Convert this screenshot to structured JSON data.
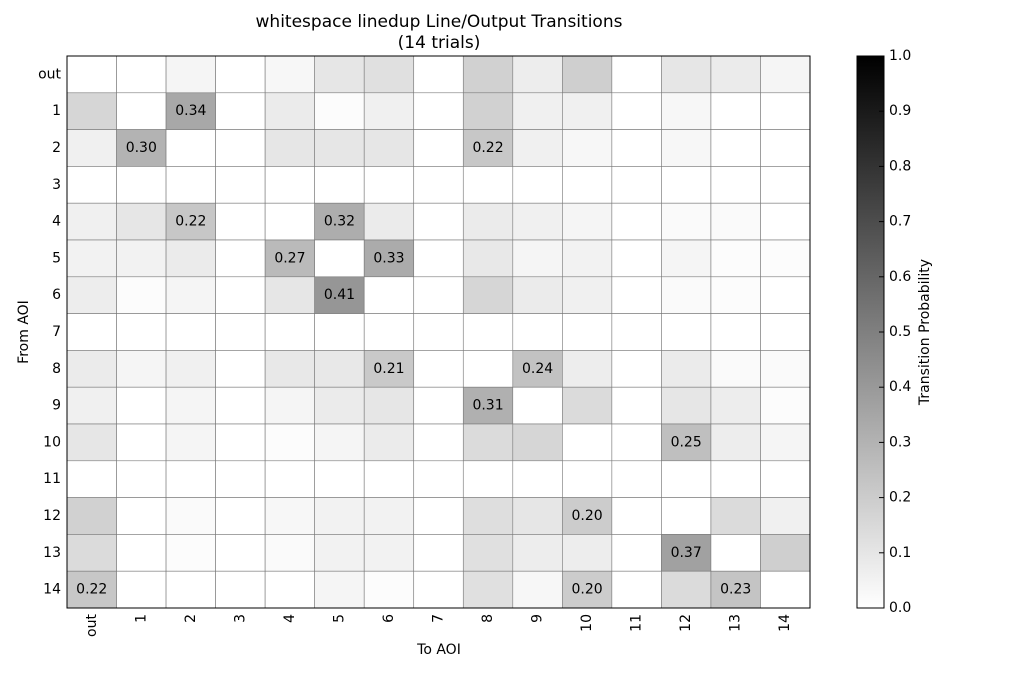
{
  "chart_data": {
    "type": "heatmap",
    "title": "whitespace linedup Line/Output Transitions",
    "subtitle": "(14 trials)",
    "x_label": "To AOI",
    "y_label": "From AOI",
    "colorbar_label": "Transition Probability",
    "x_categories": [
      "out",
      "1",
      "2",
      "3",
      "4",
      "5",
      "6",
      "7",
      "8",
      "9",
      "10",
      "11",
      "12",
      "13",
      "14"
    ],
    "y_categories": [
      "out",
      "1",
      "2",
      "3",
      "4",
      "5",
      "6",
      "7",
      "8",
      "9",
      "10",
      "11",
      "12",
      "13",
      "14"
    ],
    "values": [
      [
        0,
        0,
        0.04,
        0,
        0.03,
        0.1,
        0.12,
        0,
        0.18,
        0.07,
        0.19,
        0,
        0.1,
        0.08,
        0.04
      ],
      [
        0.16,
        0,
        0.34,
        0,
        0.08,
        0.01,
        0.06,
        0,
        0.18,
        0.06,
        0.06,
        0,
        0.03,
        0,
        0
      ],
      [
        0.06,
        0.3,
        0,
        0,
        0.1,
        0.1,
        0.1,
        0,
        0.22,
        0.06,
        0.03,
        0,
        0.03,
        0,
        0
      ],
      [
        0,
        0,
        0,
        0,
        0,
        0,
        0,
        0,
        0,
        0,
        0,
        0,
        0,
        0,
        0
      ],
      [
        0.06,
        0.1,
        0.22,
        0,
        0,
        0.32,
        0.08,
        0,
        0.08,
        0.06,
        0.04,
        0,
        0.02,
        0.02,
        0
      ],
      [
        0.05,
        0.05,
        0.08,
        0,
        0.27,
        0,
        0.33,
        0,
        0.09,
        0.04,
        0.05,
        0,
        0.04,
        0.01,
        0.01
      ],
      [
        0.07,
        0.01,
        0.04,
        0,
        0.1,
        0.41,
        0,
        0,
        0.16,
        0.08,
        0.06,
        0,
        0.02,
        0.01,
        0
      ],
      [
        0,
        0,
        0,
        0,
        0,
        0,
        0,
        0,
        0,
        0,
        0,
        0,
        0,
        0,
        0
      ],
      [
        0.08,
        0.04,
        0.06,
        0,
        0.09,
        0.09,
        0.21,
        0,
        0,
        0.24,
        0.07,
        0,
        0.08,
        0.02,
        0.02
      ],
      [
        0.06,
        0,
        0.04,
        0,
        0.04,
        0.08,
        0.1,
        0,
        0.31,
        0,
        0.14,
        0,
        0.1,
        0.07,
        0.01
      ],
      [
        0.1,
        0,
        0.04,
        0,
        0.01,
        0.04,
        0.08,
        0,
        0.14,
        0.16,
        0,
        0,
        0.25,
        0.07,
        0.04
      ],
      [
        0,
        0,
        0,
        0,
        0,
        0,
        0,
        0,
        0,
        0,
        0,
        0,
        0,
        0,
        0
      ],
      [
        0.18,
        0,
        0.02,
        0,
        0.03,
        0.05,
        0.05,
        0,
        0.13,
        0.1,
        0.2,
        0,
        0,
        0.14,
        0.06
      ],
      [
        0.14,
        0,
        0.01,
        0,
        0.02,
        0.05,
        0.05,
        0,
        0.12,
        0.07,
        0.07,
        0,
        0.37,
        0,
        0.19
      ],
      [
        0.22,
        0,
        0,
        0,
        0,
        0.04,
        0.01,
        0,
        0.12,
        0.03,
        0.2,
        0,
        0.14,
        0.23,
        0
      ]
    ],
    "value_labels": [
      [
        null,
        null,
        null,
        null,
        null,
        null,
        null,
        null,
        null,
        null,
        null,
        null,
        null,
        null,
        null
      ],
      [
        null,
        null,
        "0.34",
        null,
        null,
        null,
        null,
        null,
        null,
        null,
        null,
        null,
        null,
        null,
        null
      ],
      [
        null,
        "0.30",
        null,
        null,
        null,
        null,
        null,
        null,
        "0.22",
        null,
        null,
        null,
        null,
        null,
        null
      ],
      [
        null,
        null,
        null,
        null,
        null,
        null,
        null,
        null,
        null,
        null,
        null,
        null,
        null,
        null,
        null
      ],
      [
        null,
        null,
        "0.22",
        null,
        null,
        "0.32",
        null,
        null,
        null,
        null,
        null,
        null,
        null,
        null,
        null
      ],
      [
        null,
        null,
        null,
        null,
        "0.27",
        null,
        "0.33",
        null,
        null,
        null,
        null,
        null,
        null,
        null,
        null
      ],
      [
        null,
        null,
        null,
        null,
        null,
        "0.41",
        null,
        null,
        null,
        null,
        null,
        null,
        null,
        null,
        null
      ],
      [
        null,
        null,
        null,
        null,
        null,
        null,
        null,
        null,
        null,
        null,
        null,
        null,
        null,
        null,
        null
      ],
      [
        null,
        null,
        null,
        null,
        null,
        null,
        "0.21",
        null,
        null,
        "0.24",
        null,
        null,
        null,
        null,
        null
      ],
      [
        null,
        null,
        null,
        null,
        null,
        null,
        null,
        null,
        "0.31",
        null,
        null,
        null,
        null,
        null,
        null
      ],
      [
        null,
        null,
        null,
        null,
        null,
        null,
        null,
        null,
        null,
        null,
        null,
        null,
        "0.25",
        null,
        null
      ],
      [
        null,
        null,
        null,
        null,
        null,
        null,
        null,
        null,
        null,
        null,
        null,
        null,
        null,
        null,
        null
      ],
      [
        null,
        null,
        null,
        null,
        null,
        null,
        null,
        null,
        null,
        null,
        "0.20",
        null,
        null,
        null,
        null
      ],
      [
        null,
        null,
        null,
        null,
        null,
        null,
        null,
        null,
        null,
        null,
        null,
        null,
        "0.37",
        null,
        null
      ],
      [
        "0.22",
        null,
        null,
        null,
        null,
        null,
        null,
        null,
        null,
        null,
        "0.20",
        null,
        null,
        "0.23",
        null
      ]
    ],
    "clim": [
      0,
      1
    ],
    "cticks": [
      {
        "value": 0,
        "label": "0.0"
      },
      0.1,
      0.2,
      0.3,
      0.4,
      0.5,
      0.6,
      0.7,
      0.8,
      0.9,
      {
        "value": 1,
        "label": "1.0"
      }
    ],
    "colormap": [
      "#ffffff",
      "#000000"
    ]
  }
}
